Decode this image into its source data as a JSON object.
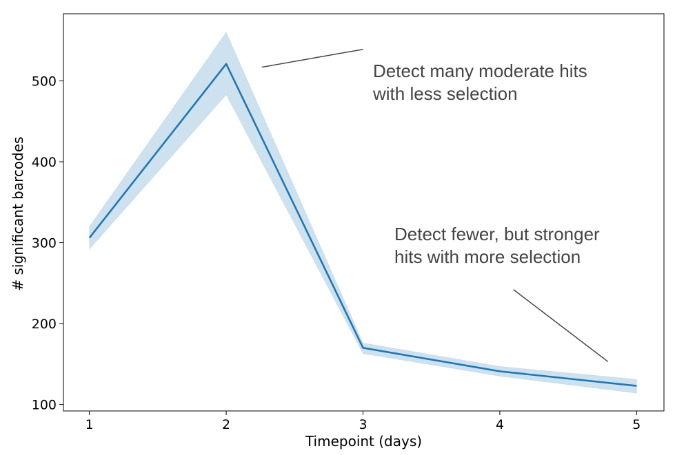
{
  "chart_data": {
    "type": "line",
    "xlabel": "Timepoint (days)",
    "ylabel": "# significant barcodes",
    "x": [
      1,
      2,
      3,
      4,
      5
    ],
    "xticks": [
      1,
      2,
      3,
      4,
      5
    ],
    "yticks": [
      100,
      200,
      300,
      400,
      500
    ],
    "xlim": [
      0.81,
      5.2
    ],
    "ylim": [
      92,
      583
    ],
    "series": [
      {
        "values": [
          306,
          521,
          170,
          141,
          123
        ],
        "lower": [
          292,
          483,
          163,
          135,
          114
        ],
        "upper": [
          320,
          560,
          176,
          147,
          131
        ],
        "color": "#1f77b4",
        "band_color": "#1f77b4"
      }
    ],
    "annotations": [
      {
        "lines": [
          "Detect many moderate hits",
          "with less selection"
        ],
        "pointer_from": [
          3.0,
          539
        ],
        "pointer_to": [
          2.26,
          517
        ]
      },
      {
        "lines": [
          "Detect fewer, but stronger",
          "hits with more selection"
        ],
        "pointer_from": [
          4.1,
          242
        ],
        "pointer_to": [
          4.79,
          153
        ]
      }
    ],
    "grid": false,
    "legend": false
  }
}
